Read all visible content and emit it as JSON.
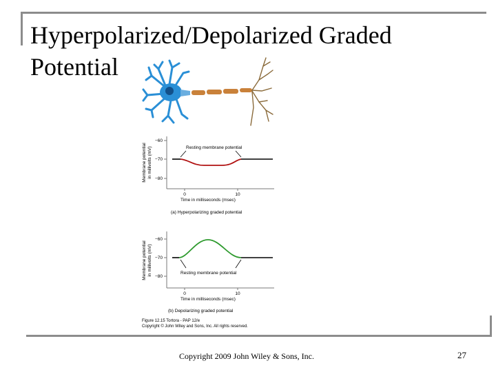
{
  "slide": {
    "title": "Hyperpolarized/Depolarized Graded Potential",
    "copyright": "Copyright 2009 John Wiley & Sons, Inc.",
    "page_number": "27"
  },
  "figure": {
    "graph_a": {
      "annotation": "Resting membrane potential",
      "ylabel_line1": "Membrane potential",
      "ylabel_line2": "in millivolts (mV)",
      "xlabel": "Time in milliseconds (msec)",
      "caption": "(a) Hyperpolarizing graded potential",
      "y_ticks": [
        "−60",
        "−70",
        "−80"
      ],
      "x_ticks": [
        "0",
        "10"
      ]
    },
    "graph_b": {
      "annotation": "Resting membrane potential",
      "ylabel_line1": "Membrane potential",
      "ylabel_line2": "in millivolts (mV)",
      "xlabel": "Time in milliseconds (msec)",
      "caption": "(b) Depolarizing graded potential",
      "y_ticks": [
        "−60",
        "−70",
        "−80"
      ],
      "x_ticks": [
        "0",
        "10"
      ]
    },
    "credit_line1": "Figure 12.15  Tortora - PAP 12/e",
    "credit_line2": "Copyright © John Wiley and Sons, Inc. All rights reserved."
  },
  "colors": {
    "hyperpolarizing": "#b01010",
    "depolarizing": "#2e9a2e",
    "resting": "#000000",
    "neuron_body": "#2a8fd6",
    "axon": "#c9813a"
  }
}
